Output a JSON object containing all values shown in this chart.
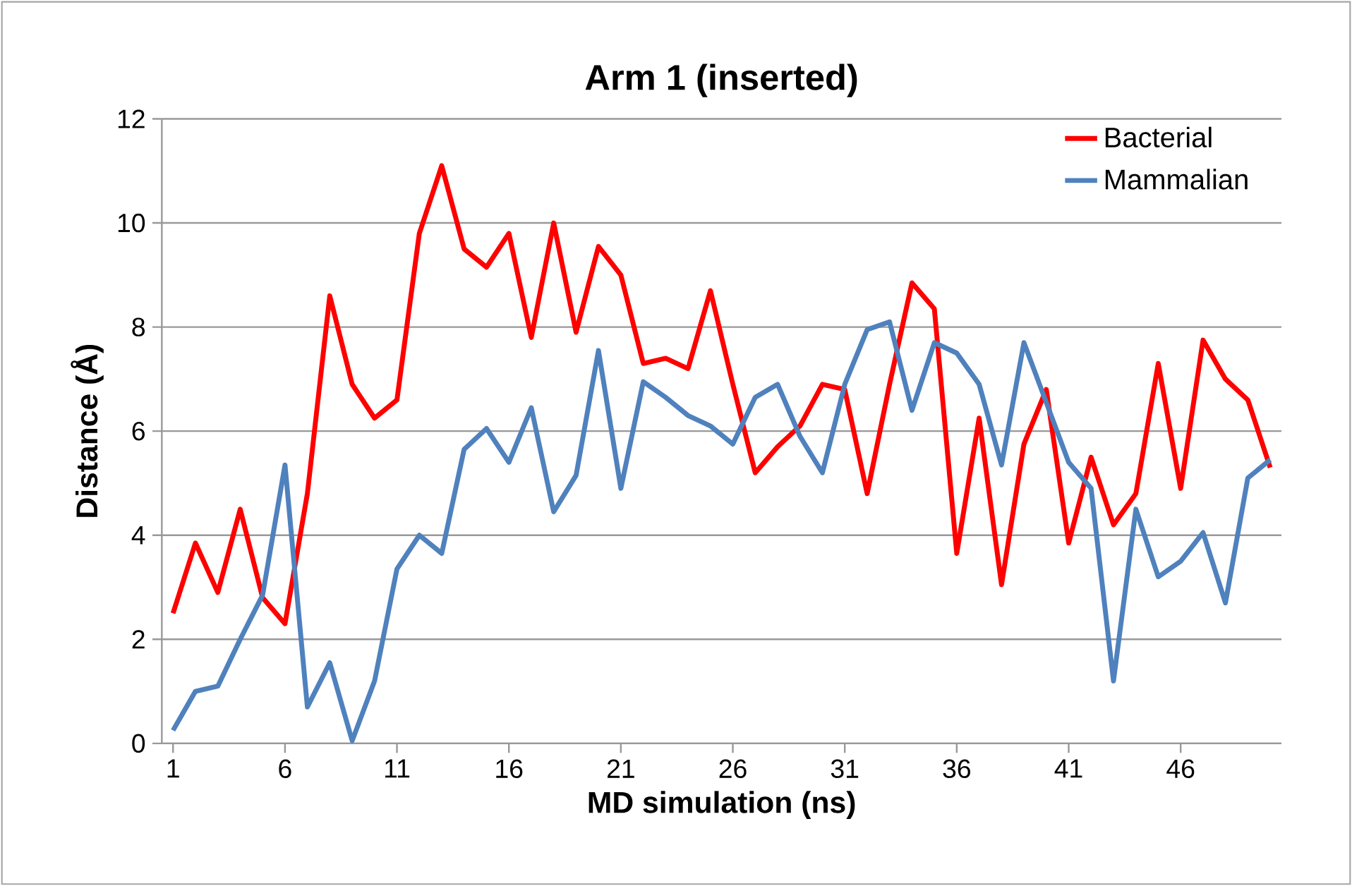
{
  "chart_data": {
    "type": "line",
    "title": "Arm 1 (inserted)",
    "xlabel": "MD simulation (ns)",
    "ylabel": "Distance (Å)",
    "categories": [
      "1",
      null,
      null,
      null,
      null,
      "6",
      null,
      null,
      null,
      null,
      "11",
      null,
      null,
      null,
      null,
      "16",
      null,
      null,
      null,
      null,
      "21",
      null,
      null,
      null,
      null,
      "26",
      null,
      null,
      null,
      null,
      "31",
      null,
      null,
      null,
      null,
      "36",
      null,
      null,
      null,
      null,
      "41",
      null,
      null,
      null,
      null,
      "46",
      null,
      null,
      null,
      null
    ],
    "series": [
      {
        "name": "Bacterial",
        "color": "#ff0000",
        "values": [
          2.5,
          3.85,
          2.9,
          4.5,
          2.8,
          2.3,
          4.8,
          8.6,
          6.9,
          6.25,
          6.6,
          9.8,
          11.1,
          9.5,
          9.15,
          9.8,
          7.8,
          10.0,
          7.9,
          9.55,
          9.0,
          7.3,
          7.4,
          7.2,
          8.7,
          6.9,
          5.2,
          5.7,
          6.1,
          6.9,
          6.8,
          4.8,
          6.9,
          8.85,
          8.35,
          3.65,
          6.25,
          3.05,
          5.75,
          6.8,
          3.85,
          5.5,
          4.2,
          4.8,
          7.3,
          4.9,
          7.75,
          7.0,
          6.6,
          5.3
        ]
      },
      {
        "name": "Mammalian",
        "color": "#4f81bd",
        "values": [
          0.25,
          1.0,
          1.1,
          2.0,
          2.85,
          5.35,
          0.7,
          1.55,
          0.05,
          1.2,
          3.35,
          4.0,
          3.65,
          5.65,
          6.05,
          5.4,
          6.45,
          4.45,
          5.15,
          7.55,
          4.9,
          6.95,
          6.65,
          6.3,
          6.1,
          5.75,
          6.65,
          6.9,
          5.9,
          5.2,
          6.9,
          7.95,
          8.1,
          6.4,
          7.7,
          7.5,
          6.9,
          5.35,
          7.7,
          6.55,
          5.4,
          4.9,
          1.2,
          4.5,
          3.2,
          3.5,
          4.05,
          2.7,
          5.1,
          5.45
        ]
      }
    ],
    "ylim": [
      0,
      12
    ],
    "yticks": [
      0,
      2,
      4,
      6,
      8,
      10,
      12
    ],
    "grid": "y",
    "legend": "top right",
    "marker": "none",
    "line_style": "solid"
  }
}
